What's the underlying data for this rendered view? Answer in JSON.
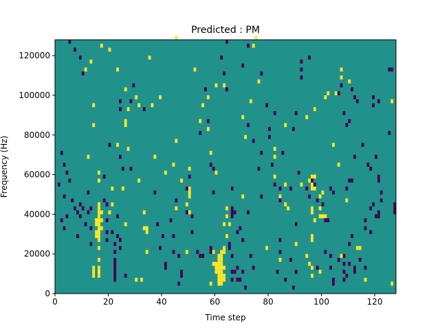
{
  "chart_data": {
    "type": "heatmap",
    "title": "Predicted : PM",
    "xlabel": "Time step",
    "ylabel": "Frequency (Hz)",
    "xlim": [
      0,
      128
    ],
    "ylim": [
      0,
      128000
    ],
    "x_ticks": [
      0,
      20,
      40,
      60,
      80,
      100,
      120
    ],
    "y_ticks": [
      0,
      20000,
      40000,
      60000,
      80000,
      100000,
      120000
    ],
    "x_tick_labels": [
      "0",
      "20",
      "40",
      "60",
      "80",
      "100",
      "120"
    ],
    "y_tick_labels": [
      "0",
      "20000",
      "40000",
      "60000",
      "80000",
      "100000",
      "120000"
    ],
    "cell_width_time_steps": 1,
    "cell_height_hz": 2000,
    "grid": false,
    "colors": {
      "background": "#21918c",
      "high": "#fde725",
      "low": "#440154"
    },
    "high_cells": [
      [
        16,
        8000
      ],
      [
        16,
        10000
      ],
      [
        16,
        12000
      ],
      [
        14,
        8000
      ],
      [
        14,
        10000
      ],
      [
        14,
        12000
      ],
      [
        16,
        16000
      ],
      [
        16,
        22000
      ],
      [
        16,
        26000
      ],
      [
        16,
        28000
      ],
      [
        16,
        30000
      ],
      [
        16,
        32000
      ],
      [
        16,
        34000
      ],
      [
        16,
        36000
      ],
      [
        16,
        38000
      ],
      [
        16,
        40000
      ],
      [
        16,
        42000
      ],
      [
        16,
        44000
      ],
      [
        15,
        34000
      ],
      [
        15,
        36000
      ],
      [
        15,
        28000
      ],
      [
        15,
        30000
      ],
      [
        17,
        32000
      ],
      [
        17,
        36000
      ],
      [
        17,
        40000
      ],
      [
        16,
        56000
      ],
      [
        16,
        60000
      ],
      [
        12,
        68000
      ],
      [
        14,
        84000
      ],
      [
        14,
        94000
      ],
      [
        11,
        112000
      ],
      [
        13,
        116000
      ],
      [
        17,
        124000
      ],
      [
        20,
        122000
      ],
      [
        21,
        52000
      ],
      [
        21,
        44000
      ],
      [
        20,
        40000
      ],
      [
        23,
        112000
      ],
      [
        26,
        102000
      ],
      [
        27,
        92000
      ],
      [
        26,
        86000
      ],
      [
        27,
        72000
      ],
      [
        23,
        74000
      ],
      [
        26,
        84000
      ],
      [
        31,
        94000
      ],
      [
        30,
        98000
      ],
      [
        25,
        52000
      ],
      [
        26,
        34000
      ],
      [
        30,
        6000
      ],
      [
        32,
        6000
      ],
      [
        34,
        20000
      ],
      [
        33,
        40000
      ],
      [
        34,
        30000
      ],
      [
        33,
        32000
      ],
      [
        34,
        32000
      ],
      [
        37,
        68000
      ],
      [
        36,
        94000
      ],
      [
        39,
        98000
      ],
      [
        35,
        118000
      ],
      [
        31,
        56000
      ],
      [
        45,
        76000
      ],
      [
        44,
        64000
      ],
      [
        45,
        128000
      ],
      [
        45,
        42000
      ],
      [
        47,
        56000
      ],
      [
        49,
        44000
      ],
      [
        49,
        20000
      ],
      [
        50,
        40000
      ],
      [
        50,
        62000
      ],
      [
        50,
        48000
      ],
      [
        50,
        50000
      ],
      [
        50,
        52000
      ],
      [
        54,
        86000
      ],
      [
        55,
        94000
      ],
      [
        58,
        70000
      ],
      [
        52,
        112000
      ],
      [
        57,
        98000
      ],
      [
        60,
        60000
      ],
      [
        61,
        4000
      ],
      [
        61,
        6000
      ],
      [
        61,
        8000
      ],
      [
        61,
        10000
      ],
      [
        61,
        12000
      ],
      [
        61,
        14000
      ],
      [
        61,
        16000
      ],
      [
        61,
        18000
      ],
      [
        62,
        4000
      ],
      [
        62,
        6000
      ],
      [
        62,
        8000
      ],
      [
        62,
        10000
      ],
      [
        62,
        12000
      ],
      [
        62,
        14000
      ],
      [
        62,
        16000
      ],
      [
        62,
        18000
      ],
      [
        62,
        20000
      ],
      [
        63,
        20000
      ],
      [
        63,
        22000
      ],
      [
        60,
        10000
      ],
      [
        60,
        12000
      ],
      [
        60,
        14000
      ],
      [
        63,
        6000
      ],
      [
        63,
        8000
      ],
      [
        63,
        12000
      ],
      [
        58,
        4000
      ],
      [
        59,
        14000
      ],
      [
        59,
        20000
      ],
      [
        64,
        28000
      ],
      [
        64,
        38000
      ],
      [
        63,
        34000
      ],
      [
        64,
        42000
      ],
      [
        65,
        34000
      ],
      [
        57,
        82000
      ],
      [
        60,
        104000
      ],
      [
        63,
        104000
      ],
      [
        66,
        52000
      ],
      [
        70,
        48000
      ],
      [
        70,
        88000
      ],
      [
        71,
        78000
      ],
      [
        73,
        96000
      ],
      [
        74,
        124000
      ],
      [
        76,
        106000
      ],
      [
        75,
        128000
      ],
      [
        86,
        84000
      ],
      [
        82,
        72000
      ],
      [
        82,
        68000
      ],
      [
        82,
        58000
      ],
      [
        84,
        48000
      ],
      [
        86,
        44000
      ],
      [
        87,
        42000
      ],
      [
        84,
        16000
      ],
      [
        90,
        24000
      ],
      [
        90,
        34000
      ],
      [
        86,
        54000
      ],
      [
        94,
        88000
      ],
      [
        91,
        60000
      ],
      [
        92,
        54000
      ],
      [
        95,
        56000
      ],
      [
        96,
        58000
      ],
      [
        96,
        54000
      ],
      [
        96,
        52000
      ],
      [
        97,
        52000
      ],
      [
        97,
        58000
      ],
      [
        99,
        48000
      ],
      [
        100,
        50000
      ],
      [
        96,
        42000
      ],
      [
        96,
        40000
      ],
      [
        96,
        28000
      ],
      [
        96,
        26000
      ],
      [
        94,
        18000
      ],
      [
        95,
        14000
      ],
      [
        96,
        12000
      ],
      [
        96,
        8000
      ],
      [
        99,
        10000
      ],
      [
        97,
        92000
      ],
      [
        101,
        98000
      ],
      [
        99,
        42000
      ],
      [
        99,
        38000
      ],
      [
        100,
        38000
      ],
      [
        106,
        64000
      ],
      [
        107,
        108000
      ],
      [
        107,
        112000
      ],
      [
        105,
        100000
      ],
      [
        102,
        100000
      ],
      [
        104,
        74000
      ],
      [
        101,
        38000
      ],
      [
        110,
        106000
      ],
      [
        126,
        96000
      ],
      [
        109,
        46000
      ],
      [
        107,
        18000
      ],
      [
        113,
        22000
      ],
      [
        114,
        22000
      ],
      [
        116,
        6000
      ],
      [
        126,
        4000
      ],
      [
        79,
        22000
      ],
      [
        97,
        36000
      ],
      [
        41,
        60000
      ]
    ],
    "low_cells": [
      [
        5,
        126000
      ],
      [
        7,
        122000
      ],
      [
        9,
        118000
      ],
      [
        10,
        110000
      ],
      [
        2,
        70000
      ],
      [
        3,
        64000
      ],
      [
        4,
        60000
      ],
      [
        5,
        56000
      ],
      [
        1,
        54000
      ],
      [
        3,
        48000
      ],
      [
        6,
        46000
      ],
      [
        9,
        44000
      ],
      [
        10,
        42000
      ],
      [
        7,
        42000
      ],
      [
        8,
        40000
      ],
      [
        9,
        38000
      ],
      [
        3,
        32000
      ],
      [
        2,
        36000
      ],
      [
        4,
        38000
      ],
      [
        8,
        28000
      ],
      [
        11,
        34000
      ],
      [
        12,
        40000
      ],
      [
        13,
        32000
      ],
      [
        13,
        42000
      ],
      [
        12,
        50000
      ],
      [
        13,
        24000
      ],
      [
        18,
        58000
      ],
      [
        18,
        46000
      ],
      [
        19,
        44000
      ],
      [
        19,
        36000
      ],
      [
        19,
        30000
      ],
      [
        19,
        26000
      ],
      [
        21,
        30000
      ],
      [
        23,
        38000
      ],
      [
        22,
        24000
      ],
      [
        22,
        20000
      ],
      [
        22,
        16000
      ],
      [
        22,
        14000
      ],
      [
        22,
        12000
      ],
      [
        22,
        10000
      ],
      [
        22,
        8000
      ],
      [
        22,
        6000
      ],
      [
        23,
        28000
      ],
      [
        24,
        26000
      ],
      [
        24,
        22000
      ],
      [
        26,
        8000
      ],
      [
        25,
        62000
      ],
      [
        28,
        62000
      ],
      [
        24,
        68000
      ],
      [
        20,
        74000
      ],
      [
        24,
        92000
      ],
      [
        24,
        96000
      ],
      [
        28,
        96000
      ],
      [
        33,
        92000
      ],
      [
        29,
        104000
      ],
      [
        37,
        50000
      ],
      [
        38,
        34000
      ],
      [
        39,
        22000
      ],
      [
        40,
        28000
      ],
      [
        41,
        14000
      ],
      [
        41,
        12000
      ],
      [
        46,
        4000
      ],
      [
        47,
        8000
      ],
      [
        47,
        10000
      ],
      [
        46,
        18000
      ],
      [
        44,
        20000
      ],
      [
        44,
        28000
      ],
      [
        43,
        36000
      ],
      [
        45,
        46000
      ],
      [
        51,
        30000
      ],
      [
        51,
        38000
      ],
      [
        50,
        58000
      ],
      [
        49,
        52000
      ],
      [
        49,
        40000
      ],
      [
        54,
        80000
      ],
      [
        53,
        20000
      ],
      [
        54,
        18000
      ],
      [
        55,
        18000
      ],
      [
        59,
        50000
      ],
      [
        59,
        62000
      ],
      [
        57,
        86000
      ],
      [
        58,
        64000
      ],
      [
        58,
        22000
      ],
      [
        58,
        20000
      ],
      [
        56,
        102000
      ],
      [
        64,
        102000
      ],
      [
        63,
        110000
      ],
      [
        62,
        118000
      ],
      [
        64,
        126000
      ],
      [
        66,
        52000
      ],
      [
        66,
        42000
      ],
      [
        66,
        40000
      ],
      [
        67,
        40000
      ],
      [
        66,
        38000
      ],
      [
        65,
        24000
      ],
      [
        65,
        22000
      ],
      [
        66,
        18000
      ],
      [
        66,
        10000
      ],
      [
        66,
        6000
      ],
      [
        67,
        10000
      ],
      [
        68,
        6000
      ],
      [
        68,
        12000
      ],
      [
        68,
        30000
      ],
      [
        69,
        6000
      ],
      [
        69,
        32000
      ],
      [
        70,
        10000
      ],
      [
        70,
        26000
      ],
      [
        72,
        40000
      ],
      [
        73,
        18000
      ],
      [
        71,
        2000
      ],
      [
        74,
        12000
      ],
      [
        77,
        48000
      ],
      [
        76,
        62000
      ],
      [
        77,
        70000
      ],
      [
        77,
        110000
      ],
      [
        70,
        114000
      ],
      [
        72,
        124000
      ],
      [
        74,
        76000
      ],
      [
        72,
        84000
      ],
      [
        79,
        94000
      ],
      [
        80,
        82000
      ],
      [
        82,
        90000
      ],
      [
        85,
        70000
      ],
      [
        81,
        64000
      ],
      [
        80,
        78000
      ],
      [
        82,
        54000
      ],
      [
        84,
        52000
      ],
      [
        84,
        46000
      ],
      [
        84,
        26000
      ],
      [
        84,
        20000
      ],
      [
        83,
        10000
      ],
      [
        86,
        6000
      ],
      [
        88,
        16000
      ],
      [
        90,
        10000
      ],
      [
        89,
        2000
      ],
      [
        90,
        34000
      ],
      [
        88,
        52000
      ],
      [
        91,
        60000
      ],
      [
        94,
        52000
      ],
      [
        96,
        56000
      ],
      [
        97,
        54000
      ],
      [
        95,
        48000
      ],
      [
        98,
        46000
      ],
      [
        92,
        108000
      ],
      [
        92,
        112000
      ],
      [
        92,
        116000
      ],
      [
        95,
        118000
      ],
      [
        101,
        36000
      ],
      [
        102,
        36000
      ],
      [
        103,
        52000
      ],
      [
        104,
        50000
      ],
      [
        100,
        44000
      ],
      [
        98,
        12000
      ],
      [
        101,
        20000
      ],
      [
        103,
        18000
      ],
      [
        103,
        12000
      ],
      [
        104,
        4000
      ],
      [
        104,
        6000
      ],
      [
        106,
        16000
      ],
      [
        108,
        18000
      ],
      [
        108,
        10000
      ],
      [
        110,
        14000
      ],
      [
        112,
        10000
      ],
      [
        112,
        12000
      ],
      [
        110,
        24000
      ],
      [
        111,
        28000
      ],
      [
        114,
        16000
      ],
      [
        116,
        12000
      ],
      [
        116,
        32000
      ],
      [
        116,
        36000
      ],
      [
        118,
        42000
      ],
      [
        119,
        44000
      ],
      [
        118,
        30000
      ],
      [
        120,
        38000
      ],
      [
        121,
        38000
      ],
      [
        121,
        40000
      ],
      [
        122,
        46000
      ],
      [
        122,
        50000
      ],
      [
        121,
        56000
      ],
      [
        121,
        58000
      ],
      [
        120,
        68000
      ],
      [
        118,
        62000
      ],
      [
        117,
        64000
      ],
      [
        115,
        74000
      ],
      [
        112,
        68000
      ],
      [
        111,
        56000
      ],
      [
        109,
        52000
      ],
      [
        110,
        56000
      ],
      [
        109,
        84000
      ],
      [
        110,
        86000
      ],
      [
        108,
        90000
      ],
      [
        106,
        100000
      ],
      [
        107,
        104000
      ],
      [
        111,
        102000
      ],
      [
        112,
        98000
      ],
      [
        113,
        96000
      ],
      [
        119,
        94000
      ],
      [
        121,
        96000
      ],
      [
        119,
        98000
      ],
      [
        125,
        112000
      ],
      [
        126,
        112000
      ],
      [
        125,
        80000
      ],
      [
        127,
        40000
      ],
      [
        127,
        42000
      ],
      [
        127,
        44000
      ],
      [
        108,
        14000
      ],
      [
        108,
        6000
      ],
      [
        109,
        8000
      ],
      [
        89,
        82000
      ],
      [
        90,
        90000
      ]
    ]
  }
}
